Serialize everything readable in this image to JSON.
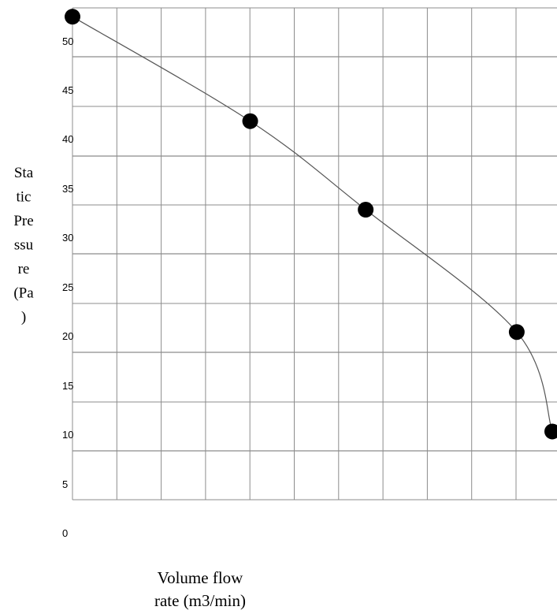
{
  "chart_data": {
    "type": "scatter",
    "title": "",
    "xlabel": [
      "Volume flow",
      "rate (m3/min)"
    ],
    "ylabel": [
      "Sta",
      "tic",
      "Pre",
      "ssu",
      "re",
      "(Pa",
      ")"
    ],
    "y_ticks": [
      "0",
      "5",
      "10",
      "15",
      "20",
      "25",
      "30",
      "35",
      "40",
      "45",
      "50"
    ],
    "ylim": [
      0,
      55
    ],
    "x_gridlines": 11,
    "grid": true,
    "show_x_tick_labels": false,
    "series": [
      {
        "points": [
          {
            "x": 0,
            "y": 51.8
          },
          {
            "x": 4.0,
            "y": 41.3
          },
          {
            "x": 6.6,
            "y": 32.4
          },
          {
            "x": 10.0,
            "y": 20.1
          },
          {
            "x": 10.8,
            "y": 10.1
          }
        ],
        "line": "smooth",
        "marker_color": "#000000",
        "line_color": "#555555"
      }
    ],
    "xlim": [
      0,
      10.8
    ]
  }
}
